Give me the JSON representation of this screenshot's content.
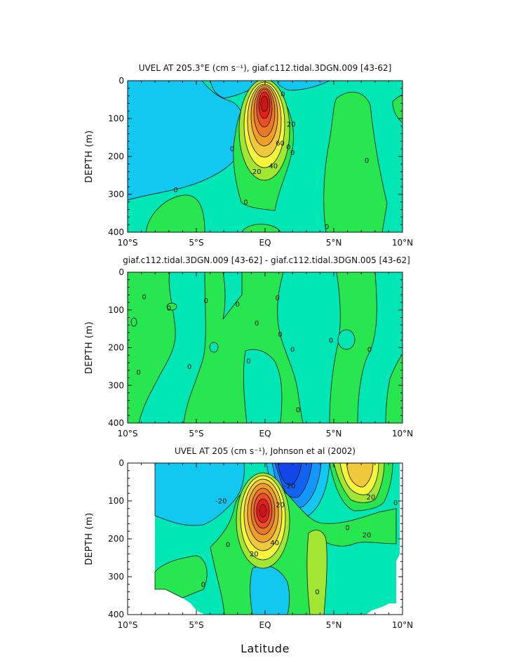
{
  "figure": {
    "xlabel": "Latitude",
    "xticks": [
      "10°S",
      "5°S",
      "EQ",
      "5°N",
      "10°N"
    ],
    "yticks": [
      "0",
      "100",
      "200",
      "300",
      "400"
    ],
    "ylabel": "DEPTH (m)"
  },
  "colors": {
    "ocean_mid": "#00e6b4",
    "ocean_low": "#12c8f0",
    "ocean_lower": "#1496ff",
    "ocean_lowest": "#1246e6",
    "green": "#28e650",
    "lime": "#a0e632",
    "yellow": "#f5f53c",
    "orange": "#f0a028",
    "red": "#e61e1e"
  },
  "chart_data": [
    {
      "type": "heatmap",
      "title": "UVEL AT 205.3°E (cm s⁻¹), giaf.c112.tidal.3DGN.009 [43-62]",
      "xlabel": "",
      "ylabel": "DEPTH (m)",
      "xlim": [
        -10,
        10
      ],
      "ylim": [
        400,
        0
      ],
      "contour_labels": [
        {
          "text": "0",
          "x": 1.3,
          "y": 35
        },
        {
          "text": "0",
          "x": -2.4,
          "y": 180
        },
        {
          "text": "0",
          "x": 1.7,
          "y": 175
        },
        {
          "text": "0",
          "x": 2.0,
          "y": 190
        },
        {
          "text": "0",
          "x": 7.4,
          "y": 210
        },
        {
          "text": "0",
          "x": -6.5,
          "y": 288
        },
        {
          "text": "0",
          "x": -1.4,
          "y": 320
        },
        {
          "text": "0",
          "x": 4.5,
          "y": 385
        },
        {
          "text": "20",
          "x": 1.9,
          "y": 115
        },
        {
          "text": "60",
          "x": 1.1,
          "y": 165
        },
        {
          "text": "40",
          "x": 0.6,
          "y": 225
        },
        {
          "text": "20",
          "x": -0.6,
          "y": 240
        }
      ]
    },
    {
      "type": "heatmap",
      "title": "giaf.c112.tidal.3DGN.009 [43-62] - giaf.c112.tidal.3DGN.005 [43-62]",
      "xlabel": "",
      "ylabel": "DEPTH (m)",
      "xlim": [
        -10,
        10
      ],
      "ylim": [
        400,
        0
      ],
      "contour_labels": [
        {
          "text": "0",
          "x": -8.8,
          "y": 65
        },
        {
          "text": "0",
          "x": -7.0,
          "y": 95
        },
        {
          "text": "0",
          "x": -4.3,
          "y": 75
        },
        {
          "text": "0",
          "x": -2.0,
          "y": 85
        },
        {
          "text": "0",
          "x": -0.6,
          "y": 135
        },
        {
          "text": "0",
          "x": 0.9,
          "y": 68
        },
        {
          "text": "0",
          "x": 1.1,
          "y": 165
        },
        {
          "text": "0",
          "x": -1.2,
          "y": 235
        },
        {
          "text": "0",
          "x": 2.0,
          "y": 205
        },
        {
          "text": "0",
          "x": 4.8,
          "y": 180
        },
        {
          "text": "0",
          "x": 7.6,
          "y": 205
        },
        {
          "text": "0",
          "x": -5.5,
          "y": 250
        },
        {
          "text": "0",
          "x": -9.2,
          "y": 265
        },
        {
          "text": "0",
          "x": 2.4,
          "y": 365
        }
      ]
    },
    {
      "type": "heatmap",
      "title": "UVEL AT 205 (cm s⁻¹), Johnson et al (2002)",
      "xlabel": "Latitude",
      "ylabel": "DEPTH (m)",
      "xlim": [
        -10,
        10
      ],
      "ylim": [
        400,
        0
      ],
      "contour_labels": [
        {
          "text": "-20",
          "x": 1.8,
          "y": 60
        },
        {
          "text": "-20",
          "x": -3.2,
          "y": 100
        },
        {
          "text": "20",
          "x": 1.1,
          "y": 110
        },
        {
          "text": "40",
          "x": 0.7,
          "y": 210
        },
        {
          "text": "20",
          "x": -0.8,
          "y": 240
        },
        {
          "text": "20",
          "x": 7.7,
          "y": 90
        },
        {
          "text": "20",
          "x": 7.4,
          "y": 190
        },
        {
          "text": "0",
          "x": -2.7,
          "y": 215
        },
        {
          "text": "0",
          "x": -4.5,
          "y": 320
        },
        {
          "text": "0",
          "x": 3.8,
          "y": 340
        },
        {
          "text": "0",
          "x": 6.0,
          "y": 170
        },
        {
          "text": "0",
          "x": 9.5,
          "y": 105
        }
      ]
    }
  ]
}
